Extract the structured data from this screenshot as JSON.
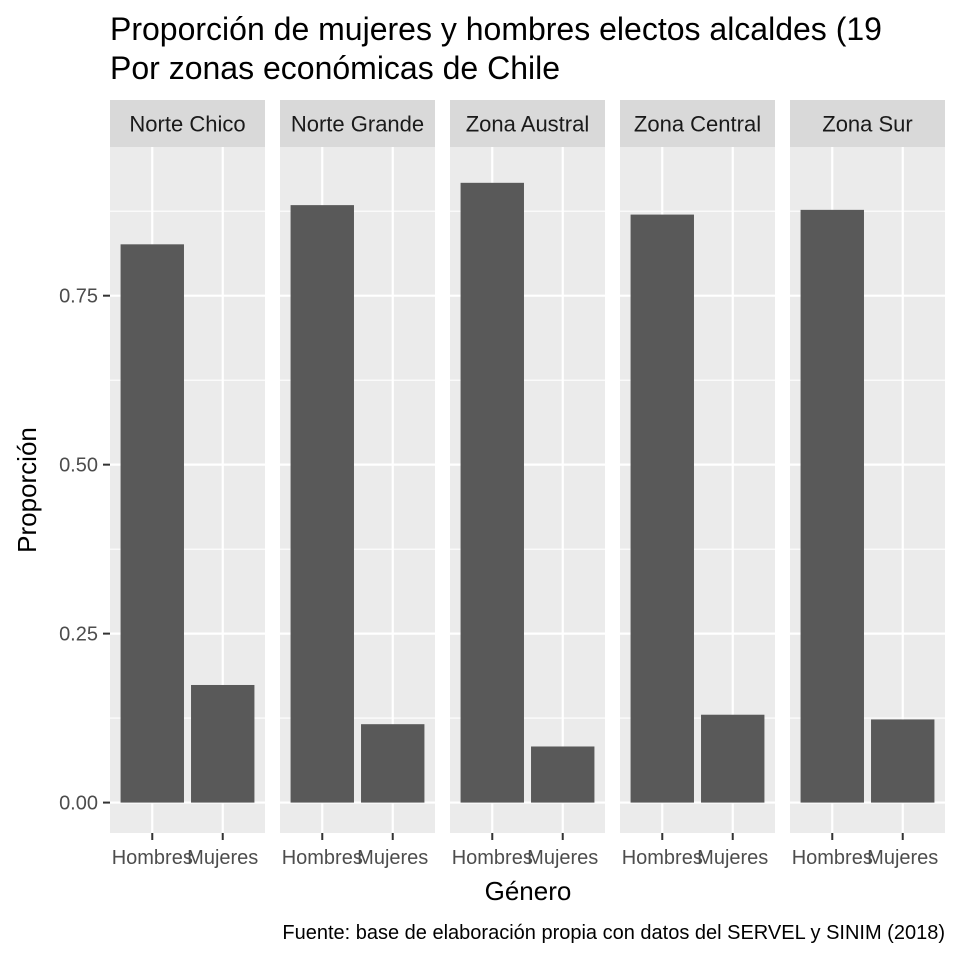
{
  "chart_data": {
    "type": "bar",
    "title_line1": "Proporción de mujeres y hombres electos alcaldes (19",
    "title_line2": "Por zonas económicas de Chile",
    "xlabel": "Género",
    "ylabel": "Proporción",
    "caption": "Fuente: base de elaboración propia con datos del SERVEL y SINIM (2018)",
    "ylim": [
      -0.045,
      0.97
    ],
    "yticks": [
      0,
      0.25,
      0.5,
      0.75
    ],
    "ytick_labels": [
      "0.00",
      "0.25",
      "0.50",
      "0.75"
    ],
    "categories": [
      "Hombres",
      "Mujeres"
    ],
    "grid": true,
    "colors": {
      "bar": "#595959",
      "panel": "#ebebeb",
      "strip": "#d9d9d9",
      "grid": "#ffffff",
      "tick": "#333333"
    },
    "facets": [
      {
        "name": "Norte Chico",
        "values": [
          0.826,
          0.174
        ]
      },
      {
        "name": "Norte Grande",
        "values": [
          0.884,
          0.116
        ]
      },
      {
        "name": "Zona Austral",
        "values": [
          0.917,
          0.083
        ]
      },
      {
        "name": "Zona Central",
        "values": [
          0.87,
          0.13
        ]
      },
      {
        "name": "Zona Sur",
        "values": [
          0.877,
          0.123
        ]
      }
    ]
  }
}
